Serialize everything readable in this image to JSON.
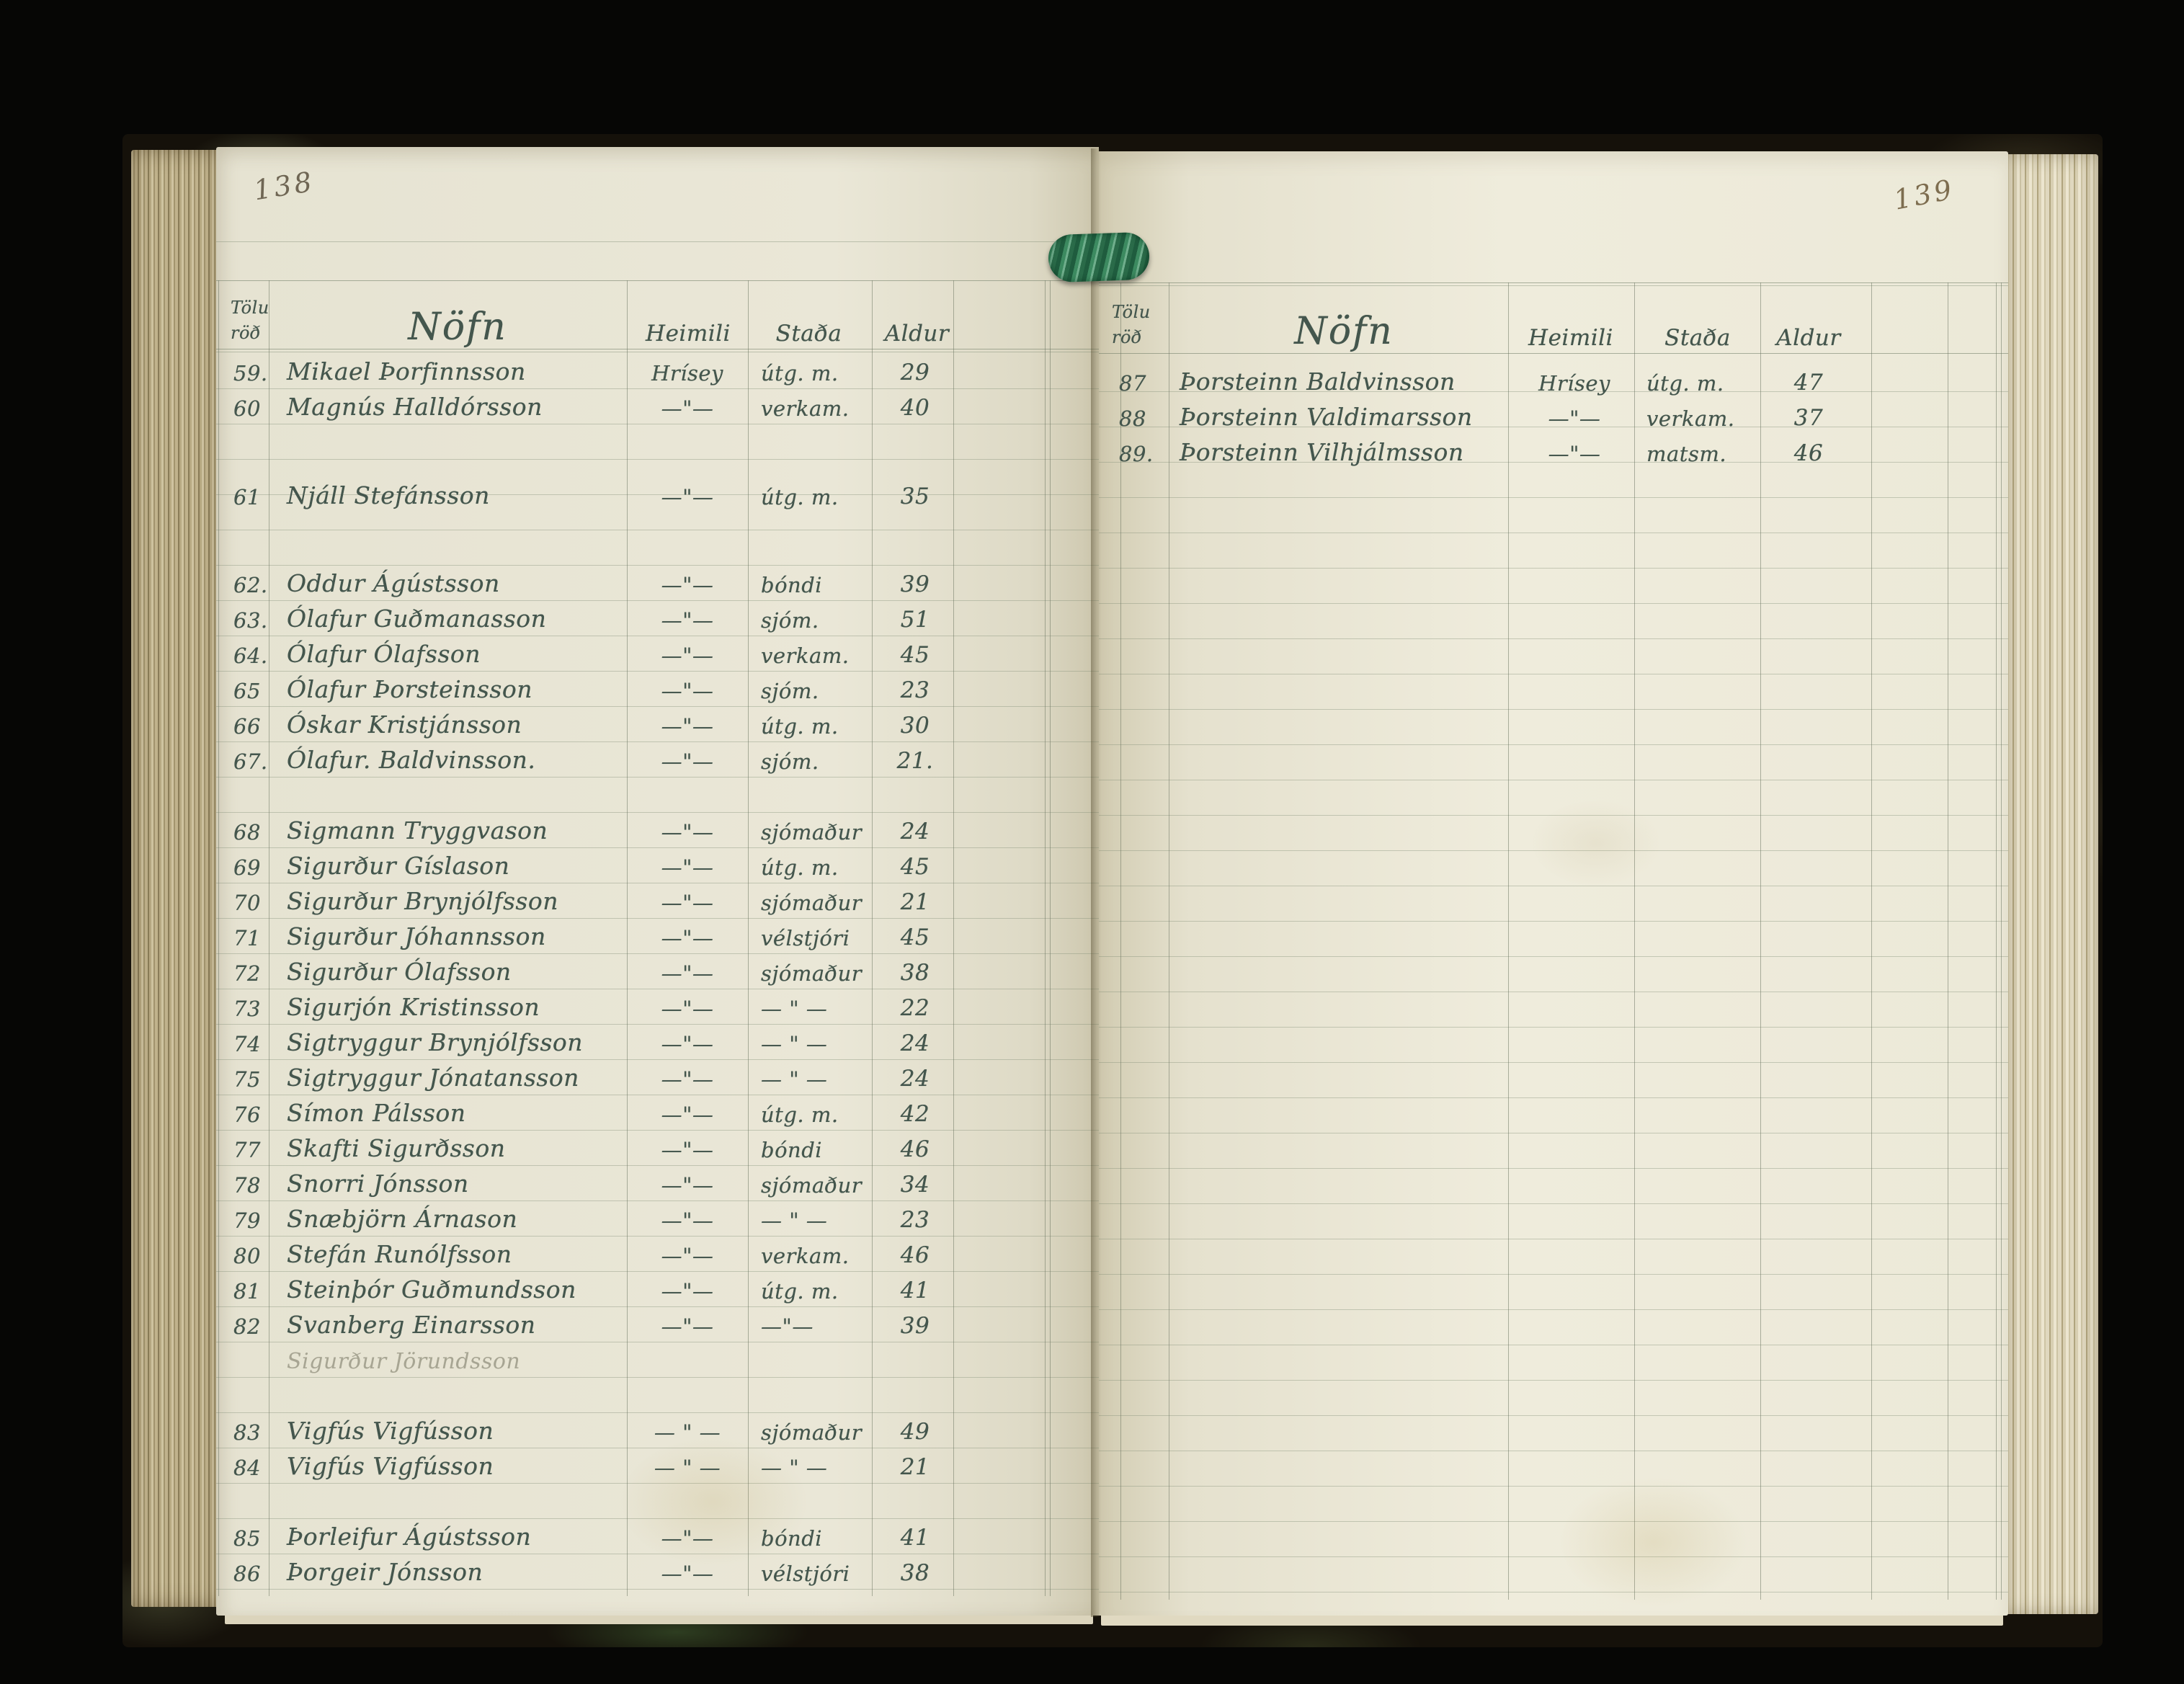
{
  "book": {
    "left_page": {
      "page_number": "138",
      "headers": {
        "number": "Tölu röð",
        "name": "Nöfn",
        "home": "Heimili",
        "status": "Staða",
        "age": "Aldur"
      },
      "entries": [
        {
          "no": "59.",
          "name": "Mikael Þorfinnsson",
          "home": "Hrísey",
          "status": "útg. m.",
          "age": "29",
          "line": 0
        },
        {
          "no": "60",
          "name": "Magnús Halldórsson",
          "home": "—\"—",
          "status": "verkam.",
          "age": "40",
          "line": 1
        },
        {
          "no": "61",
          "name": "Njáll Stefánsson",
          "home": "—\"—",
          "status": "útg. m.",
          "age": "35",
          "line": 3.5
        },
        {
          "no": "62.",
          "name": "Oddur Ágústsson",
          "home": "—\"—",
          "status": "bóndi",
          "age": "39",
          "line": 6
        },
        {
          "no": "63.",
          "name": "Ólafur Guðmanasson",
          "home": "—\"—",
          "status": "sjóm.",
          "age": "51",
          "line": 7
        },
        {
          "no": "64.",
          "name": "Ólafur Ólafsson",
          "home": "—\"—",
          "status": "verkam.",
          "age": "45",
          "line": 8
        },
        {
          "no": "65",
          "name": "Ólafur Þorsteinsson",
          "home": "—\"—",
          "status": "sjóm.",
          "age": "23",
          "line": 9
        },
        {
          "no": "66",
          "name": "Óskar Kristjánsson",
          "home": "—\"—",
          "status": "útg. m.",
          "age": "30",
          "line": 10
        },
        {
          "no": "67.",
          "name": "Ólafur. Baldvinsson.",
          "home": "—\"—",
          "status": "sjóm.",
          "age": "21.",
          "line": 11
        },
        {
          "no": "68",
          "name": "Sigmann Tryggvason",
          "home": "—\"—",
          "status": "sjómaður",
          "age": "24",
          "line": 13
        },
        {
          "no": "69",
          "name": "Sigurður Gíslason",
          "home": "—\"—",
          "status": "útg. m.",
          "age": "45",
          "line": 14
        },
        {
          "no": "70",
          "name": "Sigurður Brynjólfsson",
          "home": "—\"—",
          "status": "sjómaður",
          "age": "21",
          "line": 15
        },
        {
          "no": "71",
          "name": "Sigurður Jóhannsson",
          "home": "—\"—",
          "status": "vélstjóri",
          "age": "45",
          "line": 16
        },
        {
          "no": "72",
          "name": "Sigurður Ólafsson",
          "home": "—\"—",
          "status": "sjómaður",
          "age": "38",
          "line": 17
        },
        {
          "no": "73",
          "name": "Sigurjón Kristinsson",
          "home": "—\"—",
          "status": "— \" —",
          "age": "22",
          "line": 18
        },
        {
          "no": "74",
          "name": "Sigtryggur Brynjólfsson",
          "home": "—\"—",
          "status": "— \" —",
          "age": "24",
          "line": 19
        },
        {
          "no": "75",
          "name": "Sigtryggur Jónatansson",
          "home": "—\"—",
          "status": "— \" —",
          "age": "24",
          "line": 20
        },
        {
          "no": "76",
          "name": "Símon Pálsson",
          "home": "—\"—",
          "status": "útg. m.",
          "age": "42",
          "line": 21
        },
        {
          "no": "77",
          "name": "Skafti Sigurðsson",
          "home": "—\"—",
          "status": "bóndi",
          "age": "46",
          "line": 22
        },
        {
          "no": "78",
          "name": "Snorri Jónsson",
          "home": "—\"—",
          "status": "sjómaður",
          "age": "34",
          "line": 23
        },
        {
          "no": "79",
          "name": "Snæbjörn Árnason",
          "home": "—\"—",
          "status": "— \" —",
          "age": "23",
          "line": 24
        },
        {
          "no": "80",
          "name": "Stefán Runólfsson",
          "home": "—\"—",
          "status": "verkam.",
          "age": "46",
          "line": 25
        },
        {
          "no": "81",
          "name": "Steinþór Guðmundsson",
          "home": "—\"—",
          "status": "útg. m.",
          "age": "41",
          "line": 26
        },
        {
          "no": "82",
          "name": "Svanberg Einarsson",
          "home": "—\"—",
          "status": "—\"—",
          "age": "39",
          "line": 27
        },
        {
          "no": "",
          "name": "Sigurður Jörundsson",
          "home": "",
          "status": "",
          "age": "",
          "line": 28,
          "pencil": true
        },
        {
          "no": "83",
          "name": "Vigfús Vigfússon",
          "home": "— \" —",
          "status": "sjómaður",
          "age": "49",
          "line": 30
        },
        {
          "no": "84",
          "name": "Vigfús Vigfússon",
          "home": "— \" —",
          "status": "— \" —",
          "age": "21",
          "line": 31
        },
        {
          "no": "85",
          "name": "Þorleifur Ágústsson",
          "home": "—\"—",
          "status": "bóndi",
          "age": "41",
          "line": 33
        },
        {
          "no": "86",
          "name": "Þorgeir Jónsson",
          "home": "—\"—",
          "status": "vélstjóri",
          "age": "38",
          "line": 34
        }
      ]
    },
    "right_page": {
      "page_number": "139",
      "headers": {
        "number": "Tölu röð",
        "name": "Nöfn",
        "home": "Heimili",
        "status": "Staða",
        "age": "Aldur"
      },
      "entries": [
        {
          "no": "87",
          "name": "Þorsteinn Baldvinsson",
          "home": "Hrísey",
          "status": "útg. m.",
          "age": "47",
          "line": 0
        },
        {
          "no": "88",
          "name": "Þorsteinn Valdimarsson",
          "home": "—\"—",
          "status": "verkam.",
          "age": "37",
          "line": 1
        },
        {
          "no": "89.",
          "name": "Þorsteinn Vilhjálmsson",
          "home": "—\"—",
          "status": "matsm.",
          "age": "46",
          "line": 2
        }
      ]
    },
    "colors": {
      "ink": "#44564d",
      "paper": "#eae7d7",
      "thread": "#3c8a60",
      "pencil": "#a7a593"
    }
  }
}
